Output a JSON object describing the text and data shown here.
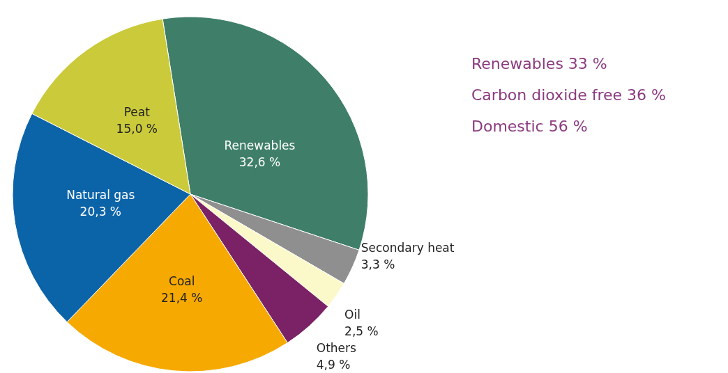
{
  "chart_data": {
    "type": "pie",
    "categories": [
      "Renewables",
      "Secondary heat",
      "Oil",
      "Others",
      "Coal",
      "Natural gas",
      "Peat"
    ],
    "values": [
      32.6,
      3.3,
      2.5,
      4.9,
      21.4,
      20.3,
      15.0
    ],
    "colors": [
      "#3f7f69",
      "#8f8f8f",
      "#fbf9c9",
      "#7b2266",
      "#f6a900",
      "#0c64a8",
      "#cbca3b"
    ],
    "value_labels": [
      "32,6 %",
      "3,3 %",
      "2,5 %",
      "4,9 %",
      "21,4 %",
      "20,3 %",
      "15,0 %"
    ],
    "annotations": [
      "Renewables 33 %",
      "Carbon dioxide free 36 %",
      "Domestic 56 %"
    ],
    "legend": false
  }
}
